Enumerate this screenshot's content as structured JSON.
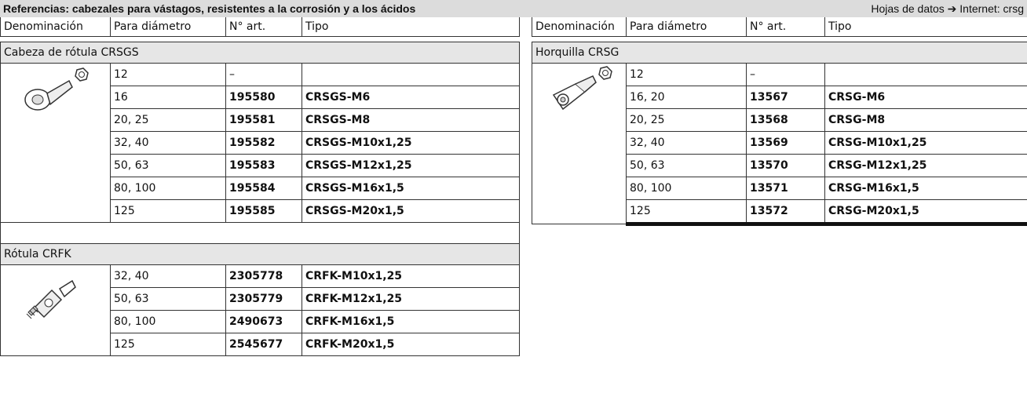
{
  "header": {
    "title": "Referencias: cabezales para vástagos, resistentes a la corrosión y a los ácidos",
    "link": "Hojas de datos ➔ Internet: crsg"
  },
  "left": {
    "columns": [
      "Denominación",
      "Para diámetro",
      "N° art.",
      "Tipo"
    ],
    "groups": [
      {
        "name": "Cabeza de rótula CRSGS",
        "rows": [
          [
            "12",
            "–"
          ],
          [
            "16",
            "195580",
            "CRSGS-M6"
          ],
          [
            "20, 25",
            "195581",
            "CRSGS-M8"
          ],
          [
            "32, 40",
            "195582",
            "CRSGS-M10x1,25"
          ],
          [
            "50, 63",
            "195583",
            "CRSGS-M12x1,25"
          ],
          [
            "80, 100",
            "195584",
            "CRSGS-M16x1,5"
          ],
          [
            "125",
            "195585",
            "CRSGS-M20x1,5"
          ]
        ]
      },
      {
        "name": "Rótula CRFK",
        "rows": [
          [
            "32, 40",
            "2305778",
            "CRFK-M10x1,25"
          ],
          [
            "50, 63",
            "2305779",
            "CRFK-M12x1,25"
          ],
          [
            "80, 100",
            "2490673",
            "CRFK-M16x1,5"
          ],
          [
            "125",
            "2545677",
            "CRFK-M20x1,5"
          ]
        ]
      }
    ]
  },
  "right": {
    "columns": [
      "Denominación",
      "Para diámetro",
      "N° art.",
      "Tipo"
    ],
    "groups": [
      {
        "name": "Horquilla CRSG",
        "rows": [
          [
            "12",
            "–"
          ],
          [
            "16, 20",
            "13567",
            "CRSG-M6"
          ],
          [
            "20, 25",
            "13568",
            "CRSG-M8"
          ],
          [
            "32, 40",
            "13569",
            "CRSG-M10x1,25"
          ],
          [
            "50, 63",
            "13570",
            "CRSG-M12x1,25"
          ],
          [
            "80, 100",
            "13571",
            "CRSG-M16x1,5"
          ],
          [
            "125",
            "13572",
            "CRSG-M20x1,5"
          ]
        ]
      }
    ]
  }
}
